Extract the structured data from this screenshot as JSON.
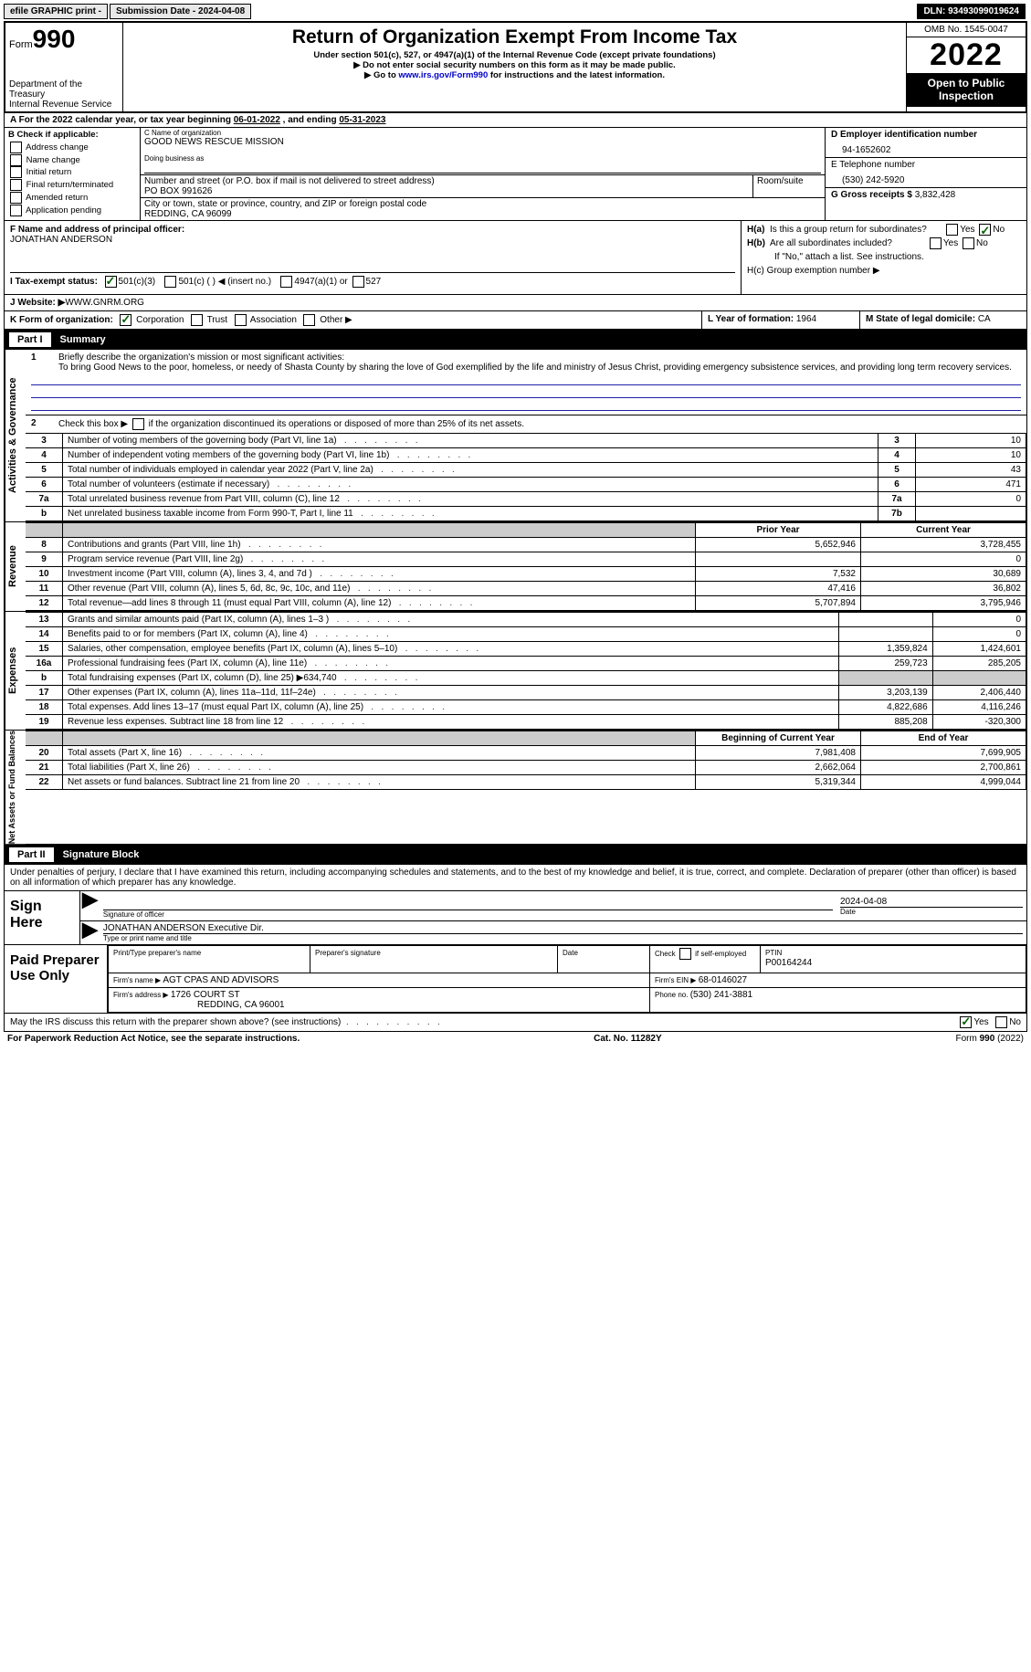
{
  "topbar": {
    "efile": "efile GRAPHIC print -",
    "subdate_label": "Submission Date - ",
    "subdate": "2024-04-08",
    "dln_label": "DLN: ",
    "dln": "93493099019624"
  },
  "header": {
    "form_word": "Form",
    "form_num": "990",
    "dept": "Department of the Treasury",
    "irs": "Internal Revenue Service",
    "title": "Return of Organization Exempt From Income Tax",
    "sub1": "Under section 501(c), 527, or 4947(a)(1) of the Internal Revenue Code (except private foundations)",
    "sub2": "▶ Do not enter social security numbers on this form as it may be made public.",
    "sub3a": "▶ Go to ",
    "sub3link": "www.irs.gov/Form990",
    "sub3b": " for instructions and the latest information.",
    "omb": "OMB No. 1545-0047",
    "year": "2022",
    "open": "Open to Public Inspection"
  },
  "rowA": {
    "text_a": "A For the 2022 calendar year, or tax year beginning ",
    "begin": "06-01-2022",
    "mid": "  , and ending ",
    "end": "05-31-2023"
  },
  "colB": {
    "hdr": "B Check if applicable:",
    "o1": "Address change",
    "o2": "Name change",
    "o3": "Initial return",
    "o4": "Final return/terminated",
    "o5": "Amended return",
    "o6": "Application pending"
  },
  "colC": {
    "name_lbl": "C Name of organization",
    "name": "GOOD NEWS RESCUE MISSION",
    "dba_lbl": "Doing business as",
    "addr_lbl": "Number and street (or P.O. box if mail is not delivered to street address)",
    "room_lbl": "Room/suite",
    "addr": "PO BOX 991626",
    "city_lbl": "City or town, state or province, country, and ZIP or foreign postal code",
    "city": "REDDING, CA  96099"
  },
  "colD": {
    "d_lbl": "D Employer identification number",
    "ein": "94-1652602",
    "e_lbl": "E Telephone number",
    "phone": "(530) 242-5920",
    "g_lbl": "G Gross receipts $ ",
    "gross": "3,832,428"
  },
  "rowF": {
    "lbl": "F Name and address of principal officer:",
    "name": "JONATHAN ANDERSON"
  },
  "rowH": {
    "ha": "H(a)  Is this a group return for subordinates?",
    "hb": "H(b)  Are all subordinates included?",
    "hbnote": "If \"No,\" attach a list. See instructions.",
    "hc": "H(c)  Group exemption number ▶",
    "yes": "Yes",
    "no": "No"
  },
  "rowI": {
    "lbl": "I   Tax-exempt status:",
    "o1": "501(c)(3)",
    "o2": "501(c) (   ) ◀ (insert no.)",
    "o3": "4947(a)(1) or",
    "o4": "527"
  },
  "rowJ": {
    "lbl": "J   Website: ▶  ",
    "val": "WWW.GNRM.ORG"
  },
  "rowK": {
    "lbl": "K Form of organization:",
    "o1": "Corporation",
    "o2": "Trust",
    "o3": "Association",
    "o4": "Other ▶",
    "l_lbl": "L Year of formation: ",
    "l_val": "1964",
    "m_lbl": "M State of legal domicile: ",
    "m_val": "CA"
  },
  "partI": {
    "title": "Part I    Summary",
    "q1": "Briefly describe the organization's mission or most significant activities:",
    "mission": "To bring Good News to the poor, homeless, or needy of Shasta County by sharing the love of God exemplified by the life and ministry of Jesus Christ, providing emergency subsistence services, and providing long term recovery services.",
    "q2": "Check this box ▶      if the organization discontinued its operations or disposed of more than 25% of its net assets.",
    "rows": [
      {
        "n": "3",
        "t": "Number of voting members of the governing body (Part VI, line 1a)",
        "k": "3",
        "v": "10"
      },
      {
        "n": "4",
        "t": "Number of independent voting members of the governing body (Part VI, line 1b)",
        "k": "4",
        "v": "10"
      },
      {
        "n": "5",
        "t": "Total number of individuals employed in calendar year 2022 (Part V, line 2a)",
        "k": "5",
        "v": "43"
      },
      {
        "n": "6",
        "t": "Total number of volunteers (estimate if necessary)",
        "k": "6",
        "v": "471"
      },
      {
        "n": "7a",
        "t": "Total unrelated business revenue from Part VIII, column (C), line 12",
        "k": "7a",
        "v": "0"
      },
      {
        "n": "b",
        "t": "Net unrelated business taxable income from Form 990-T, Part I, line 11",
        "k": "7b",
        "v": ""
      }
    ],
    "hdr_prior": "Prior Year",
    "hdr_curr": "Current Year",
    "rev": [
      {
        "n": "8",
        "t": "Contributions and grants (Part VIII, line 1h)",
        "p": "5,652,946",
        "c": "3,728,455"
      },
      {
        "n": "9",
        "t": "Program service revenue (Part VIII, line 2g)",
        "p": "",
        "c": "0"
      },
      {
        "n": "10",
        "t": "Investment income (Part VIII, column (A), lines 3, 4, and 7d )",
        "p": "7,532",
        "c": "30,689"
      },
      {
        "n": "11",
        "t": "Other revenue (Part VIII, column (A), lines 5, 6d, 8c, 9c, 10c, and 11e)",
        "p": "47,416",
        "c": "36,802"
      },
      {
        "n": "12",
        "t": "Total revenue—add lines 8 through 11 (must equal Part VIII, column (A), line 12)",
        "p": "5,707,894",
        "c": "3,795,946"
      }
    ],
    "exp": [
      {
        "n": "13",
        "t": "Grants and similar amounts paid (Part IX, column (A), lines 1–3 )",
        "p": "",
        "c": "0"
      },
      {
        "n": "14",
        "t": "Benefits paid to or for members (Part IX, column (A), line 4)",
        "p": "",
        "c": "0"
      },
      {
        "n": "15",
        "t": "Salaries, other compensation, employee benefits (Part IX, column (A), lines 5–10)",
        "p": "1,359,824",
        "c": "1,424,601"
      },
      {
        "n": "16a",
        "t": "Professional fundraising fees (Part IX, column (A), line 11e)",
        "p": "259,723",
        "c": "285,205"
      },
      {
        "n": "b",
        "t": "Total fundraising expenses (Part IX, column (D), line 25) ▶634,740",
        "p": "shade",
        "c": "shade"
      },
      {
        "n": "17",
        "t": "Other expenses (Part IX, column (A), lines 11a–11d, 11f–24e)",
        "p": "3,203,139",
        "c": "2,406,440"
      },
      {
        "n": "18",
        "t": "Total expenses. Add lines 13–17 (must equal Part IX, column (A), line 25)",
        "p": "4,822,686",
        "c": "4,116,246"
      },
      {
        "n": "19",
        "t": "Revenue less expenses. Subtract line 18 from line 12",
        "p": "885,208",
        "c": "-320,300"
      }
    ],
    "hdr_beg": "Beginning of Current Year",
    "hdr_end": "End of Year",
    "net": [
      {
        "n": "20",
        "t": "Total assets (Part X, line 16)",
        "p": "7,981,408",
        "c": "7,699,905"
      },
      {
        "n": "21",
        "t": "Total liabilities (Part X, line 26)",
        "p": "2,662,064",
        "c": "2,700,861"
      },
      {
        "n": "22",
        "t": "Net assets or fund balances. Subtract line 21 from line 20",
        "p": "5,319,344",
        "c": "4,999,044"
      }
    ],
    "vt_act": "Activities & Governance",
    "vt_rev": "Revenue",
    "vt_exp": "Expenses",
    "vt_net": "Net Assets or Fund Balances"
  },
  "partII": {
    "title": "Part II    Signature Block",
    "decl": "Under penalties of perjury, I declare that I have examined this return, including accompanying schedules and statements, and to the best of my knowledge and belief, it is true, correct, and complete. Declaration of preparer (other than officer) is based on all information of which preparer has any knowledge.",
    "sign_here": "Sign Here",
    "sig_officer": "Signature of officer",
    "sig_date": "2024-04-08",
    "date_lbl": "Date",
    "printed": "JONATHAN ANDERSON  Executive Dir.",
    "printed_lbl": "Type or print name and title",
    "paid": "Paid Preparer Use Only",
    "p_name_lbl": "Print/Type preparer's name",
    "p_sig_lbl": "Preparer's signature",
    "p_date_lbl": "Date",
    "p_check": "Check         if self-employed",
    "ptin_lbl": "PTIN",
    "ptin": "P00164244",
    "firm_name_lbl": "Firm's name    ▶ ",
    "firm_name": "AGT CPAS AND ADVISORS",
    "firm_ein_lbl": "Firm's EIN ▶ ",
    "firm_ein": "68-0146027",
    "firm_addr_lbl": "Firm's address ▶ ",
    "firm_addr1": "1726 COURT ST",
    "firm_addr2": "REDDING, CA  96001",
    "firm_phone_lbl": "Phone no. ",
    "firm_phone": "(530) 241-3881",
    "may": "May the IRS discuss this return with the preparer shown above? (see instructions)",
    "yes": "Yes",
    "no": "No"
  },
  "footer": {
    "l": "For Paperwork Reduction Act Notice, see the separate instructions.",
    "m": "Cat. No. 11282Y",
    "r": "Form 990 (2022)"
  }
}
